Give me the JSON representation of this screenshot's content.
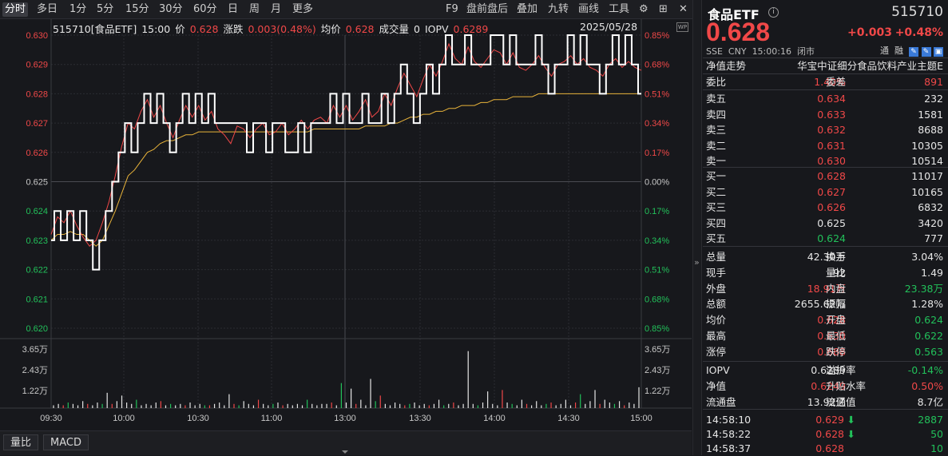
{
  "toolbar": {
    "tabs": [
      "分时",
      "多日",
      "1分",
      "5分",
      "15分",
      "30分",
      "60分",
      "日",
      "周",
      "月",
      "更多"
    ],
    "right": [
      "F9",
      "盘前盘后",
      "叠加",
      "九转",
      "画线",
      "工具"
    ]
  },
  "info": {
    "code_name": "515710[食品ETF]",
    "time": "15:00",
    "price_label": "价",
    "price": "0.628",
    "change_label": "涨跌",
    "change": "0.003(0.48%)",
    "avg_label": "均价",
    "avg": "0.628",
    "volume_label": "成交量",
    "volume": "0",
    "iopv_label": "IOPV",
    "iopv": "0.6289",
    "date": "2025/05/28"
  },
  "chart_data": {
    "type": "line",
    "title": "",
    "y_price_ticks": [
      "0.630",
      "0.629",
      "0.628",
      "0.627",
      "0.626",
      "0.625",
      "0.624",
      "0.623",
      "0.622",
      "0.621",
      "0.620"
    ],
    "y_pct_ticks": [
      "0.85%",
      "0.68%",
      "0.51%",
      "0.34%",
      "0.17%",
      "0.00%",
      "0.17%",
      "0.34%",
      "0.51%",
      "0.68%",
      "0.85%"
    ],
    "volume_ticks": [
      "3.65万",
      "2.43万",
      "1.22万"
    ],
    "x_ticks": [
      "09:30",
      "10:00",
      "10:30",
      "11:00",
      "13:00",
      "13:30",
      "14:00",
      "14:30",
      "15:00"
    ],
    "ylim": [
      0.62,
      0.63
    ],
    "prev_close": 0.625,
    "series": [
      {
        "name": "价",
        "values": [
          0.623,
          0.624,
          0.623,
          0.624,
          0.623,
          0.624,
          0.623,
          0.622,
          0.623,
          0.624,
          0.625,
          0.626,
          0.627,
          0.626,
          0.627,
          0.628,
          0.627,
          0.628,
          0.627,
          0.626,
          0.627,
          0.628,
          0.627,
          0.628,
          0.627,
          0.628,
          0.627,
          0.627,
          0.627,
          0.627,
          0.627,
          0.626,
          0.627,
          0.627,
          0.626,
          0.627,
          0.627,
          0.626,
          0.626,
          0.627,
          0.626,
          0.627,
          0.627,
          0.627,
          0.628,
          0.627,
          0.628,
          0.627,
          0.627,
          0.628,
          0.627,
          0.627,
          0.628,
          0.627,
          0.628,
          0.629,
          0.628,
          0.627,
          0.628,
          0.629,
          0.628,
          0.629,
          0.63,
          0.629,
          0.629,
          0.63,
          0.629,
          0.629,
          0.629,
          0.63,
          0.63,
          0.629,
          0.63,
          0.629,
          0.629,
          0.629,
          0.63,
          0.629,
          0.628,
          0.629,
          0.629,
          0.63,
          0.629,
          0.63,
          0.629,
          0.629,
          0.628,
          0.629,
          0.63,
          0.629,
          0.63,
          0.629,
          0.628
        ]
      },
      {
        "name": "IOPV",
        "values": [
          0.6232,
          0.6238,
          0.6236,
          0.624,
          0.6235,
          0.6231,
          0.6228,
          0.623,
          0.6236,
          0.6243,
          0.6252,
          0.6262,
          0.627,
          0.6268,
          0.6274,
          0.6278,
          0.6272,
          0.6276,
          0.627,
          0.6265,
          0.6271,
          0.6276,
          0.6272,
          0.6276,
          0.6271,
          0.6274,
          0.6268,
          0.6266,
          0.6263,
          0.6269,
          0.6268,
          0.6265,
          0.6268,
          0.627,
          0.6266,
          0.6267,
          0.627,
          0.6266,
          0.6268,
          0.6271,
          0.6268,
          0.6271,
          0.6272,
          0.627,
          0.6276,
          0.6272,
          0.6276,
          0.6271,
          0.6274,
          0.6278,
          0.6272,
          0.6274,
          0.628,
          0.6276,
          0.6282,
          0.6287,
          0.6283,
          0.6279,
          0.6285,
          0.629,
          0.6286,
          0.6291,
          0.6297,
          0.6292,
          0.629,
          0.6296,
          0.6291,
          0.6289,
          0.6292,
          0.6295,
          0.6294,
          0.629,
          0.6294,
          0.6289,
          0.6288,
          0.629,
          0.6293,
          0.6289,
          0.6286,
          0.629,
          0.6291,
          0.6293,
          0.629,
          0.6292,
          0.6289,
          0.6288,
          0.6286,
          0.629,
          0.6292,
          0.6289,
          0.6291,
          0.6289,
          0.6288
        ]
      },
      {
        "name": "均价",
        "values": [
          0.623,
          0.6232,
          0.6232,
          0.6233,
          0.6232,
          0.6232,
          0.623,
          0.6228,
          0.623,
          0.6235,
          0.624,
          0.6246,
          0.6252,
          0.6254,
          0.6257,
          0.626,
          0.6261,
          0.6263,
          0.6264,
          0.6264,
          0.6265,
          0.6266,
          0.6266,
          0.6267,
          0.6267,
          0.6267,
          0.6267,
          0.6267,
          0.6267,
          0.6267,
          0.6267,
          0.6267,
          0.6267,
          0.6267,
          0.6267,
          0.6267,
          0.6267,
          0.6267,
          0.6267,
          0.6267,
          0.6267,
          0.6268,
          0.6268,
          0.6268,
          0.6268,
          0.6268,
          0.6268,
          0.6268,
          0.6268,
          0.6269,
          0.6269,
          0.6269,
          0.6269,
          0.627,
          0.627,
          0.6271,
          0.6272,
          0.6272,
          0.6273,
          0.6273,
          0.6274,
          0.6274,
          0.6275,
          0.6275,
          0.6276,
          0.6276,
          0.6276,
          0.6277,
          0.6277,
          0.6278,
          0.6278,
          0.6278,
          0.6279,
          0.6279,
          0.6279,
          0.6279,
          0.628,
          0.628,
          0.628,
          0.628,
          0.628,
          0.628,
          0.628,
          0.628,
          0.628,
          0.628,
          0.628,
          0.628,
          0.628,
          0.628,
          0.628,
          0.628,
          0.628
        ]
      }
    ],
    "volume": [
      0.2,
      0.3,
      0.2,
      0.4,
      0.3,
      0.2,
      0.5,
      0.3,
      0.2,
      0.4,
      0.3,
      1.1,
      0.3,
      0.5,
      0.9,
      0.4,
      0.3,
      0.6,
      0.2,
      0.3,
      0.2,
      0.4,
      0.5,
      0.2,
      0.3,
      0.2,
      0.3,
      0.2,
      0.4,
      0.2,
      0.3,
      0.2,
      0.2,
      0.3,
      0.4,
      0.2,
      1.0,
      0.3,
      0.2,
      0.5,
      0.3,
      0.2,
      0.6,
      0.3,
      0.2,
      0.3,
      0.4,
      0.2,
      0.3,
      0.2,
      0.3,
      0.2,
      0.6,
      0.3,
      0.2,
      0.3,
      0.3,
      0.4,
      0.2,
      1.8,
      0.4,
      1.4,
      0.3,
      0.6,
      0.2,
      2.1,
      0.5,
      0.9,
      0.3,
      0.2,
      0.4,
      0.3,
      0.2,
      0.3,
      0.4,
      0.2,
      0.3,
      0.2,
      0.3,
      0.6,
      0.2,
      0.3,
      0.4,
      0.2,
      0.3,
      4.1,
      0.3,
      0.2,
      0.4,
      1.2,
      0.3,
      0.2,
      1.3,
      0.4,
      0.3,
      0.2,
      0.6,
      0.3,
      0.2,
      0.5,
      0.2,
      0.3,
      0.4,
      0.2,
      0.3,
      0.6,
      0.2,
      0.4,
      1.0,
      0.3,
      0.5,
      1.3,
      0.3,
      0.6,
      0.4,
      0.3,
      0.5,
      0.2,
      0.4,
      0.3,
      1.5
    ]
  },
  "bottom": {
    "tabs": [
      "量比",
      "MACD"
    ]
  },
  "panel": {
    "name": "食品ETF",
    "code": "515710",
    "price": "0.628",
    "change": "+0.003",
    "change_pct": "+0.48%",
    "exchange": "SSE",
    "currency": "CNY",
    "time": "15:00:16",
    "status": "闭市",
    "flags": [
      "通",
      "融"
    ],
    "nav_trend_label": "净值走势",
    "index_name": "华宝中证细分食品饮料产业主题E",
    "wei_bi_label": "委比",
    "wei_bi": "1.40%",
    "wei_cha_label": "委差",
    "wei_cha": "891",
    "asks": [
      {
        "label": "卖五",
        "price": "0.634",
        "vol": "232"
      },
      {
        "label": "卖四",
        "price": "0.633",
        "vol": "1581"
      },
      {
        "label": "卖三",
        "price": "0.632",
        "vol": "8688"
      },
      {
        "label": "卖二",
        "price": "0.631",
        "vol": "10305"
      },
      {
        "label": "卖一",
        "price": "0.630",
        "vol": "10514"
      }
    ],
    "bids": [
      {
        "label": "买一",
        "price": "0.628",
        "vol": "11017"
      },
      {
        "label": "买二",
        "price": "0.627",
        "vol": "10165"
      },
      {
        "label": "买三",
        "price": "0.626",
        "vol": "6832"
      },
      {
        "label": "买四",
        "price": "0.625",
        "vol": "3420"
      },
      {
        "label": "买五",
        "price": "0.624",
        "vol": "777"
      }
    ],
    "stats": [
      {
        "l1": "总量",
        "v1": "42.30万",
        "c1": "white",
        "l2": "换手",
        "v2": "3.04%",
        "c2": "white"
      },
      {
        "l1": "现手",
        "v1": "92",
        "c1": "white",
        "l2": "量比",
        "v2": "1.49",
        "c2": "white"
      },
      {
        "l1": "外盘",
        "v1": "18.91万",
        "c1": "red",
        "l2": "内盘",
        "v2": "23.38万",
        "c2": "green"
      },
      {
        "l1": "总额",
        "v1": "2655.62万",
        "c1": "white",
        "l2": "振幅",
        "v2": "1.28%",
        "c2": "white"
      },
      {
        "l1": "均价",
        "v1": "0.628",
        "c1": "red",
        "l2": "开盘",
        "v2": "0.624",
        "c2": "green"
      },
      {
        "l1": "最高",
        "v1": "0.630",
        "c1": "red",
        "l2": "最低",
        "v2": "0.622",
        "c2": "green"
      },
      {
        "l1": "涨停",
        "v1": "0.688",
        "c1": "red",
        "l2": "跌停",
        "v2": "0.563",
        "c2": "green"
      }
    ],
    "stats2": [
      {
        "l1": "IOPV",
        "v1": "0.6289",
        "c1": "white",
        "l2": "溢折率",
        "v2": "-0.14%",
        "c2": "green"
      },
      {
        "l1": "净值",
        "v1": "0.6249",
        "c1": "red",
        "l2": "升贴水率",
        "v2": "0.50%",
        "c2": "red"
      },
      {
        "l1": "流通盘",
        "v1": "13.92亿",
        "c1": "white",
        "l2": "流通值",
        "v2": "8.7亿",
        "c2": "white"
      }
    ],
    "ticks": [
      {
        "time": "14:58:10",
        "price": "0.629",
        "dir": "down",
        "vol": "2887",
        "vc": "green"
      },
      {
        "time": "14:58:22",
        "price": "0.628",
        "dir": "down",
        "vol": "50",
        "vc": "green"
      },
      {
        "time": "14:58:37",
        "price": "0.628",
        "dir": "",
        "vol": "10",
        "vc": "green"
      }
    ]
  }
}
